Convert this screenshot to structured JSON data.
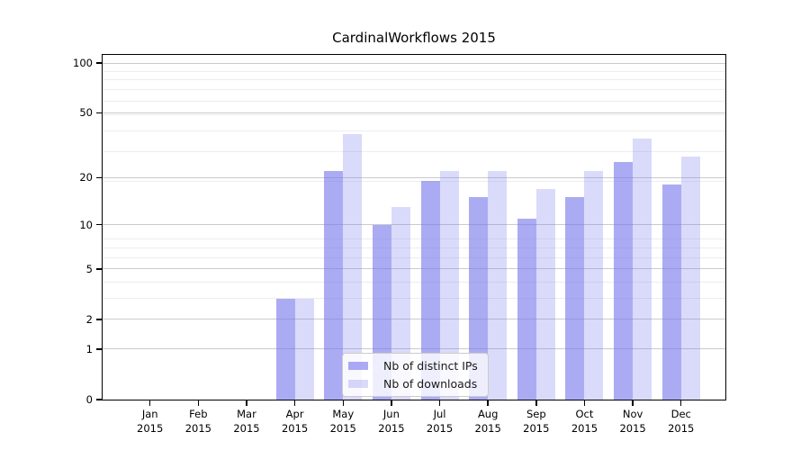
{
  "chart_data": {
    "type": "bar",
    "title": "CardinalWorkflows 2015",
    "categories": [
      "Jan",
      "Feb",
      "Mar",
      "Apr",
      "May",
      "Jun",
      "Jul",
      "Aug",
      "Sep",
      "Oct",
      "Nov",
      "Dec"
    ],
    "category_year": "2015",
    "series": [
      {
        "name": "Nb of distinct IPs",
        "color_hex": "#7777ee",
        "alpha": 0.62,
        "values": [
          0,
          0,
          0,
          3,
          22,
          10,
          19,
          15,
          11,
          15,
          25,
          18
        ]
      },
      {
        "name": "Nb of downloads",
        "color_hex": "#7777ee",
        "alpha": 0.27,
        "values": [
          0,
          0,
          0,
          3,
          37,
          13,
          22,
          22,
          17,
          22,
          35,
          27
        ]
      }
    ],
    "yscale": "log(1+x)",
    "yticks": [
      0,
      1,
      2,
      5,
      10,
      20,
      50,
      100
    ],
    "minor_gridlines": [
      3,
      4,
      6,
      7,
      8,
      19,
      29,
      39,
      49,
      59,
      69,
      79,
      89
    ],
    "ylim": [
      0,
      112
    ],
    "xlabel": "",
    "ylabel": "",
    "grid": true,
    "legend_position": "lower center"
  }
}
